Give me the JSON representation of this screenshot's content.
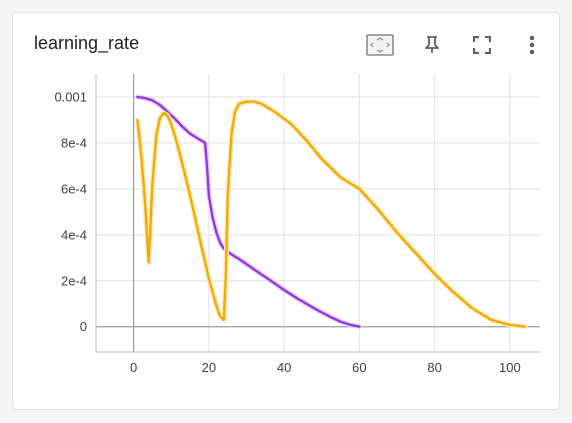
{
  "card": {
    "title": "learning_rate"
  },
  "toolbar": {
    "icons": [
      "fit-domain-icon",
      "pin-icon",
      "fullscreen-icon",
      "more-vert-icon"
    ]
  },
  "chart_data": {
    "type": "line",
    "title": "learning_rate",
    "xlim": [
      -10,
      108
    ],
    "ylim": [
      -0.00011,
      0.0011
    ],
    "x_ticks": [
      0,
      20,
      40,
      60,
      80,
      100
    ],
    "x_tick_labels": [
      "0",
      "20",
      "40",
      "60",
      "80",
      "100"
    ],
    "y_ticks": [
      0,
      0.0002,
      0.0004,
      0.0006,
      0.0008,
      0.001
    ],
    "y_tick_labels": [
      "0",
      "2e-4",
      "4e-4",
      "6e-4",
      "8e-4",
      "0.001"
    ],
    "grid": true,
    "colors": {
      "purple": "#9334e6",
      "orange": "#f5a800",
      "orange_raw": "#fde9b5",
      "purple_raw": "#e6d2f7",
      "axis": "#9e9e9e",
      "grid": "#e0e0e0"
    },
    "series": [
      {
        "color": "purple",
        "x": [
          1,
          3,
          5,
          7,
          9,
          11,
          13,
          15,
          17,
          19,
          19.5,
          20,
          21,
          22,
          23,
          24,
          26,
          28,
          30,
          33,
          36,
          40,
          44,
          48,
          52,
          55,
          58,
          60
        ],
        "y": [
          0.001,
          0.000995,
          0.000985,
          0.000965,
          0.000935,
          0.000905,
          0.00087,
          0.00084,
          0.00082,
          0.0008,
          0.0007,
          0.00057,
          0.000475,
          0.00041,
          0.000365,
          0.00034,
          0.000315,
          0.000295,
          0.000272,
          0.000238,
          0.000205,
          0.00016,
          0.000118,
          8e-05,
          4.5e-05,
          2.2e-05,
          6e-06,
          5e-07
        ]
      },
      {
        "color": "orange",
        "x": [
          1,
          2,
          3,
          4,
          5,
          6,
          7,
          8,
          9,
          10,
          11,
          12,
          14,
          16,
          18,
          20,
          22,
          23,
          24,
          24.5,
          25,
          26,
          27,
          28,
          30,
          32,
          34,
          38,
          42,
          46,
          50,
          55,
          60,
          65,
          70,
          75,
          80,
          85,
          90,
          95,
          100,
          104
        ],
        "y": [
          0.0009,
          0.00075,
          0.00055,
          0.00028,
          0.00062,
          0.00083,
          0.00091,
          0.00093,
          0.00092,
          0.00088,
          0.00083,
          0.00077,
          0.00064,
          0.0005,
          0.00035,
          0.00021,
          9e-05,
          4.5e-05,
          3e-05,
          0.00022,
          0.00057,
          0.00084,
          0.00094,
          0.00097,
          0.00098,
          0.00098,
          0.00097,
          0.00093,
          0.00088,
          0.00081,
          0.00073,
          0.00065,
          0.0006,
          0.00051,
          0.00041,
          0.00032,
          0.00023,
          0.00015,
          8e-05,
          3e-05,
          8e-06,
          5e-07
        ]
      }
    ]
  }
}
